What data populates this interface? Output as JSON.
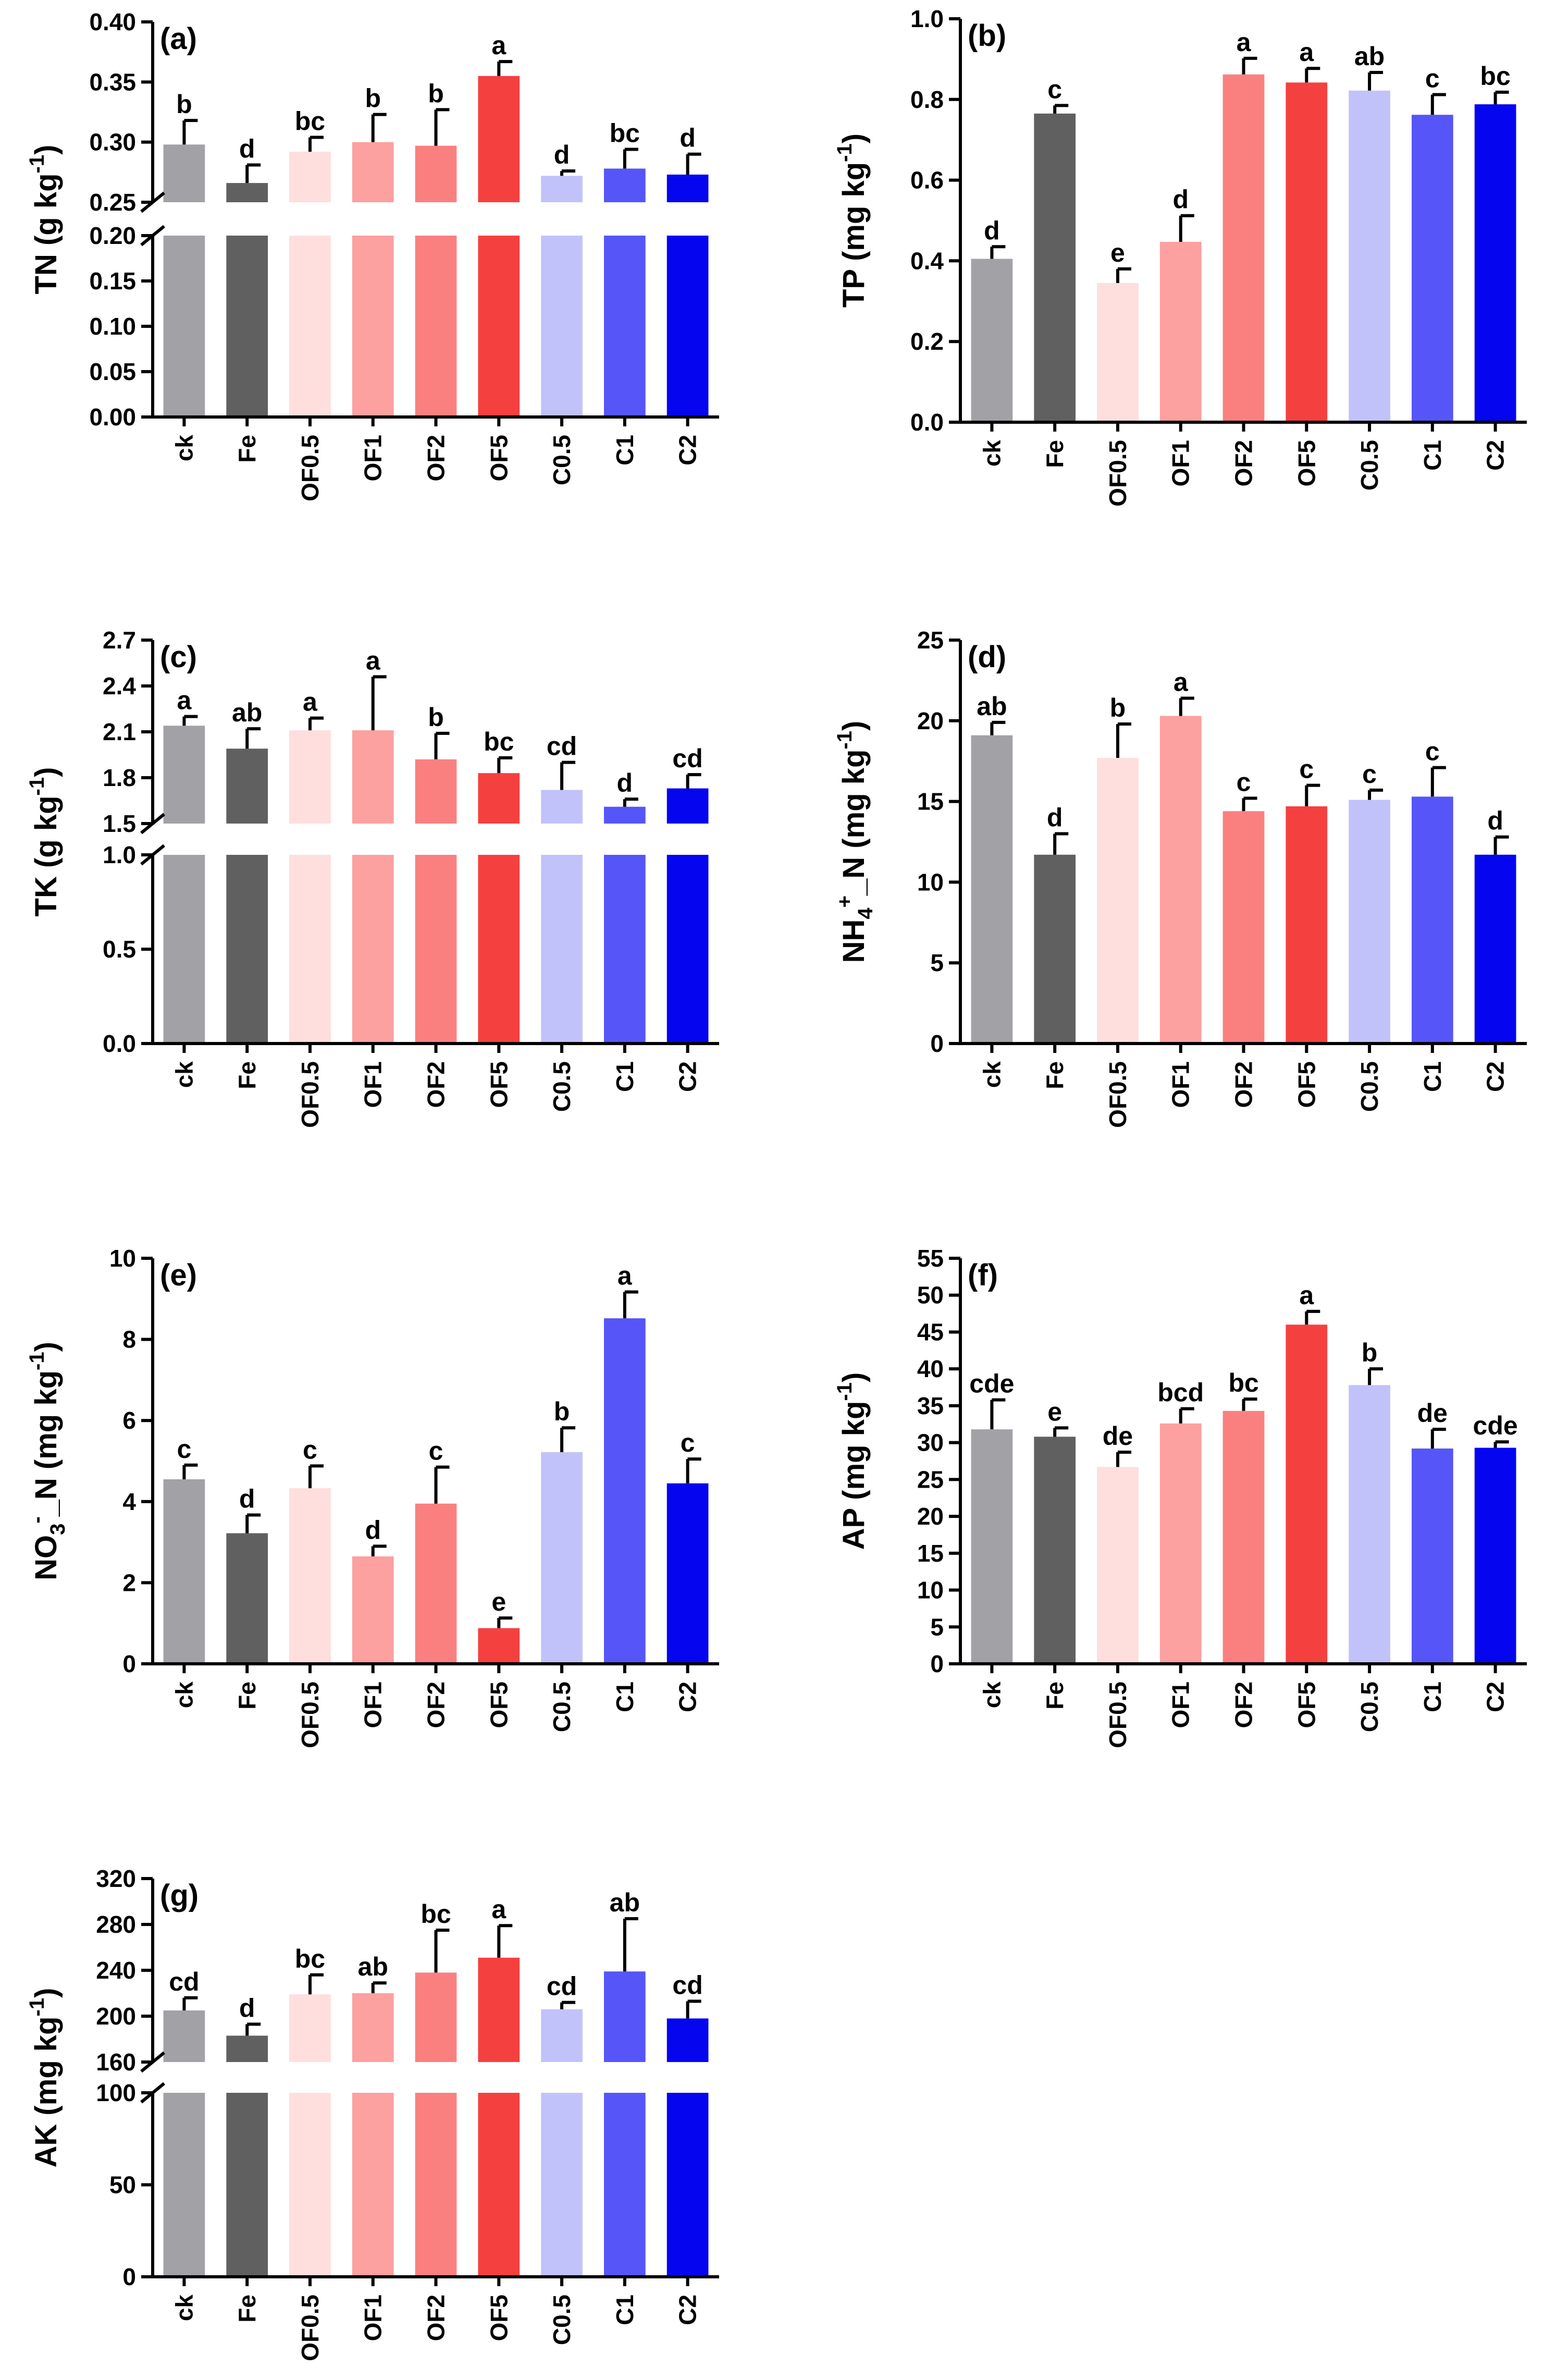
{
  "chart_data": [
    {
      "id": "a",
      "type": "bar",
      "panel_label": "(a)",
      "ylabel_main": "TN (g kg",
      "ylabel_sup": "-1",
      "ylabel_end": ")",
      "categories": [
        "ck",
        "Fe",
        "OF0.5",
        "OF1",
        "OF2",
        "OF5",
        "C0.5",
        "C1",
        "C2"
      ],
      "values": [
        0.298,
        0.266,
        0.292,
        0.3,
        0.297,
        0.355,
        0.272,
        0.278,
        0.273
      ],
      "errors": [
        0.02,
        0.015,
        0.012,
        0.023,
        0.03,
        0.012,
        0.004,
        0.016,
        0.017
      ],
      "letters": [
        "b",
        "d",
        "bc",
        "b",
        "b",
        "a",
        "d",
        "bc",
        "d"
      ],
      "colors": [
        "#a2a2a6",
        "#606060",
        "#ffdede",
        "#fca0a0",
        "#fa8080",
        "#f54040",
        "#c2c2fa",
        "#5656f8",
        "#0505f0"
      ],
      "y_broken": true,
      "lower_range": [
        0,
        0.2
      ],
      "upper_range": [
        0.25,
        0.4
      ],
      "lower_ticks": [
        "0.00",
        "0.05",
        "0.10",
        "0.15",
        "0.20"
      ],
      "upper_ticks": [
        "0.25",
        "0.30",
        "0.35",
        "0.40"
      ]
    },
    {
      "id": "b",
      "type": "bar",
      "panel_label": "(b)",
      "ylabel_main": "TP (mg kg",
      "ylabel_sup": "-1",
      "ylabel_end": ")",
      "categories": [
        "ck",
        "Fe",
        "OF0.5",
        "OF1",
        "OF2",
        "OF5",
        "C0.5",
        "C1",
        "C2"
      ],
      "values": [
        0.405,
        0.765,
        0.345,
        0.447,
        0.862,
        0.842,
        0.822,
        0.762,
        0.788
      ],
      "errors": [
        0.03,
        0.02,
        0.035,
        0.065,
        0.04,
        0.035,
        0.045,
        0.05,
        0.03
      ],
      "letters": [
        "d",
        "c",
        "e",
        "d",
        "a",
        "a",
        "ab",
        "c",
        "bc"
      ],
      "colors": [
        "#a2a2a6",
        "#606060",
        "#ffdede",
        "#fca0a0",
        "#fa8080",
        "#f54040",
        "#c2c2fa",
        "#5656f8",
        "#0505f0"
      ],
      "y_broken": false,
      "range": [
        0,
        1.0
      ],
      "ticks": [
        "0.0",
        "0.2",
        "0.4",
        "0.6",
        "0.8",
        "1.0"
      ]
    },
    {
      "id": "c",
      "type": "bar",
      "panel_label": "(c)",
      "ylabel_main": "TK (g kg",
      "ylabel_sup": "-1",
      "ylabel_end": ")",
      "categories": [
        "ck",
        "Fe",
        "OF0.5",
        "OF1",
        "OF2",
        "OF5",
        "C0.5",
        "C1",
        "C2"
      ],
      "values": [
        2.14,
        1.99,
        2.11,
        2.11,
        1.92,
        1.83,
        1.72,
        1.61,
        1.73
      ],
      "errors": [
        0.06,
        0.13,
        0.08,
        0.35,
        0.17,
        0.1,
        0.18,
        0.05,
        0.09
      ],
      "letters": [
        "a",
        "ab",
        "a",
        "a",
        "b",
        "bc",
        "cd",
        "d",
        "cd"
      ],
      "colors": [
        "#a2a2a6",
        "#606060",
        "#ffdede",
        "#fca0a0",
        "#fa8080",
        "#f54040",
        "#c2c2fa",
        "#5656f8",
        "#0505f0"
      ],
      "y_broken": true,
      "lower_range": [
        0,
        1.0
      ],
      "upper_range": [
        1.5,
        2.7
      ],
      "lower_ticks": [
        "0.0",
        "0.5",
        "1.0"
      ],
      "upper_ticks": [
        "1.5",
        "1.8",
        "2.1",
        "2.4",
        "2.7"
      ]
    },
    {
      "id": "d",
      "type": "bar",
      "panel_label": "(d)",
      "ylabel_main": "NH",
      "ylabel_sub": "4",
      "ylabel_sup2": "+",
      "ylabel_mid": "_N (mg kg",
      "ylabel_sup": "-1",
      "ylabel_end": ")",
      "categories": [
        "ck",
        "Fe",
        "OF0.5",
        "OF1",
        "OF2",
        "OF5",
        "C0.5",
        "C1",
        "C2"
      ],
      "values": [
        19.1,
        11.7,
        17.7,
        20.3,
        14.4,
        14.7,
        15.1,
        15.3,
        11.7
      ],
      "errors": [
        0.8,
        1.3,
        2.1,
        1.1,
        0.8,
        1.3,
        0.6,
        1.8,
        1.1
      ],
      "letters": [
        "ab",
        "d",
        "b",
        "a",
        "c",
        "c",
        "c",
        "c",
        "d"
      ],
      "colors": [
        "#a2a2a6",
        "#606060",
        "#ffdede",
        "#fca0a0",
        "#fa8080",
        "#f54040",
        "#c2c2fa",
        "#5656f8",
        "#0505f0"
      ],
      "y_broken": false,
      "range": [
        0,
        25
      ],
      "ticks": [
        "0",
        "5",
        "10",
        "15",
        "20",
        "25"
      ]
    },
    {
      "id": "e",
      "type": "bar",
      "panel_label": "(e)",
      "ylabel_main": "NO",
      "ylabel_sub": "3",
      "ylabel_sup2": "-",
      "ylabel_mid": "_N (mg kg",
      "ylabel_sup": "-1",
      "ylabel_end": ")",
      "categories": [
        "ck",
        "Fe",
        "OF0.5",
        "OF1",
        "OF2",
        "OF5",
        "C0.5",
        "C1",
        "C2"
      ],
      "values": [
        4.55,
        3.22,
        4.33,
        2.65,
        3.95,
        0.88,
        5.22,
        8.52,
        4.45
      ],
      "errors": [
        0.35,
        0.45,
        0.55,
        0.25,
        0.9,
        0.25,
        0.6,
        0.65,
        0.6
      ],
      "letters": [
        "c",
        "d",
        "c",
        "d",
        "c",
        "e",
        "b",
        "a",
        "c"
      ],
      "colors": [
        "#a2a2a6",
        "#606060",
        "#ffdede",
        "#fca0a0",
        "#fa8080",
        "#f54040",
        "#c2c2fa",
        "#5656f8",
        "#0505f0"
      ],
      "y_broken": false,
      "range": [
        0,
        10
      ],
      "ticks": [
        "0",
        "2",
        "4",
        "6",
        "8",
        "10"
      ]
    },
    {
      "id": "f",
      "type": "bar",
      "panel_label": "(f)",
      "ylabel_main": "AP (mg kg",
      "ylabel_sup": "-1",
      "ylabel_end": ")",
      "categories": [
        "ck",
        "Fe",
        "OF0.5",
        "OF1",
        "OF2",
        "OF5",
        "C0.5",
        "C1",
        "C2"
      ],
      "values": [
        31.8,
        30.8,
        26.7,
        32.6,
        34.3,
        46.0,
        37.8,
        29.2,
        29.3
      ],
      "errors": [
        4.0,
        1.2,
        2.0,
        2.0,
        1.6,
        1.8,
        2.2,
        2.6,
        0.8
      ],
      "letters": [
        "cde",
        "e",
        "de",
        "bcd",
        "bc",
        "a",
        "b",
        "de",
        "cde"
      ],
      "colors": [
        "#a2a2a6",
        "#606060",
        "#ffdede",
        "#fca0a0",
        "#fa8080",
        "#f54040",
        "#c2c2fa",
        "#5656f8",
        "#0505f0"
      ],
      "y_broken": false,
      "range": [
        0,
        55
      ],
      "ticks": [
        "0",
        "5",
        "10",
        "15",
        "20",
        "25",
        "30",
        "35",
        "40",
        "45",
        "50",
        "55"
      ]
    },
    {
      "id": "g",
      "type": "bar",
      "panel_label": "(g)",
      "ylabel_main": "AK (mg kg",
      "ylabel_sup": "-1",
      "ylabel_end": ")",
      "categories": [
        "ck",
        "Fe",
        "OF0.5",
        "OF1",
        "OF2",
        "OF5",
        "C0.5",
        "C1",
        "C2"
      ],
      "values": [
        205,
        183,
        219,
        220,
        238,
        251,
        206,
        239,
        198
      ],
      "errors": [
        11,
        10,
        17,
        9,
        37,
        28,
        6,
        46,
        15
      ],
      "letters": [
        "cd",
        "d",
        "bc",
        "ab",
        "bc",
        "a",
        "cd",
        "ab",
        "cd"
      ],
      "colors": [
        "#a2a2a6",
        "#606060",
        "#ffdede",
        "#fca0a0",
        "#fa8080",
        "#f54040",
        "#c2c2fa",
        "#5656f8",
        "#0505f0"
      ],
      "y_broken": true,
      "lower_range": [
        0,
        100
      ],
      "upper_range": [
        160,
        320
      ],
      "lower_ticks": [
        "0",
        "50",
        "100"
      ],
      "upper_ticks": [
        "160",
        "200",
        "240",
        "280",
        "320"
      ]
    }
  ]
}
